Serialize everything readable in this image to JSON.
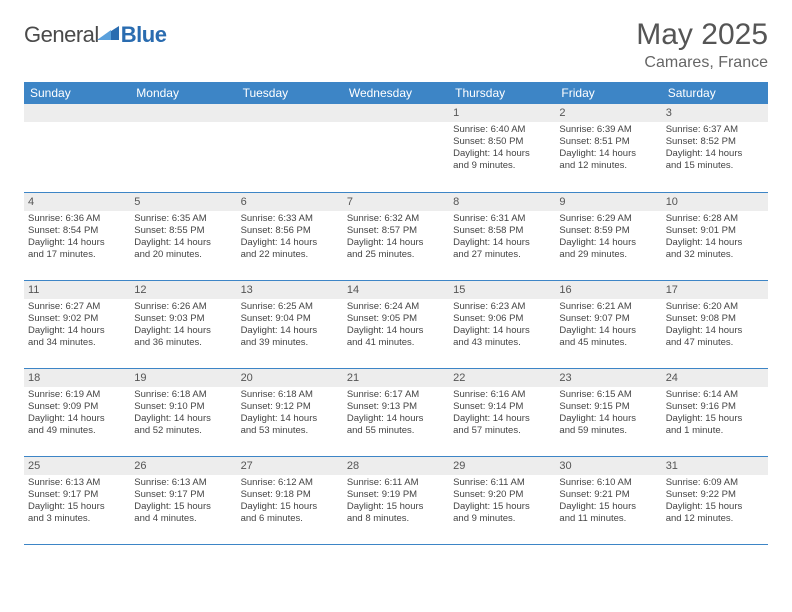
{
  "logo": {
    "part1": "General",
    "part2": "Blue"
  },
  "title": "May 2025",
  "location": "Camares, France",
  "colors": {
    "header_bg": "#3d85c6",
    "header_text": "#ffffff",
    "daynum_bg": "#ededed",
    "row_border": "#3d85c6",
    "title_color": "#555555",
    "body_text": "#444444",
    "logo_gray": "#4a4a4a",
    "logo_blue": "#2a6cb0"
  },
  "weekdays": [
    "Sunday",
    "Monday",
    "Tuesday",
    "Wednesday",
    "Thursday",
    "Friday",
    "Saturday"
  ],
  "weeks": [
    [
      null,
      null,
      null,
      null,
      {
        "n": "1",
        "sr": "Sunrise: 6:40 AM",
        "ss": "Sunset: 8:50 PM",
        "dl1": "Daylight: 14 hours",
        "dl2": "and 9 minutes."
      },
      {
        "n": "2",
        "sr": "Sunrise: 6:39 AM",
        "ss": "Sunset: 8:51 PM",
        "dl1": "Daylight: 14 hours",
        "dl2": "and 12 minutes."
      },
      {
        "n": "3",
        "sr": "Sunrise: 6:37 AM",
        "ss": "Sunset: 8:52 PM",
        "dl1": "Daylight: 14 hours",
        "dl2": "and 15 minutes."
      }
    ],
    [
      {
        "n": "4",
        "sr": "Sunrise: 6:36 AM",
        "ss": "Sunset: 8:54 PM",
        "dl1": "Daylight: 14 hours",
        "dl2": "and 17 minutes."
      },
      {
        "n": "5",
        "sr": "Sunrise: 6:35 AM",
        "ss": "Sunset: 8:55 PM",
        "dl1": "Daylight: 14 hours",
        "dl2": "and 20 minutes."
      },
      {
        "n": "6",
        "sr": "Sunrise: 6:33 AM",
        "ss": "Sunset: 8:56 PM",
        "dl1": "Daylight: 14 hours",
        "dl2": "and 22 minutes."
      },
      {
        "n": "7",
        "sr": "Sunrise: 6:32 AM",
        "ss": "Sunset: 8:57 PM",
        "dl1": "Daylight: 14 hours",
        "dl2": "and 25 minutes."
      },
      {
        "n": "8",
        "sr": "Sunrise: 6:31 AM",
        "ss": "Sunset: 8:58 PM",
        "dl1": "Daylight: 14 hours",
        "dl2": "and 27 minutes."
      },
      {
        "n": "9",
        "sr": "Sunrise: 6:29 AM",
        "ss": "Sunset: 8:59 PM",
        "dl1": "Daylight: 14 hours",
        "dl2": "and 29 minutes."
      },
      {
        "n": "10",
        "sr": "Sunrise: 6:28 AM",
        "ss": "Sunset: 9:01 PM",
        "dl1": "Daylight: 14 hours",
        "dl2": "and 32 minutes."
      }
    ],
    [
      {
        "n": "11",
        "sr": "Sunrise: 6:27 AM",
        "ss": "Sunset: 9:02 PM",
        "dl1": "Daylight: 14 hours",
        "dl2": "and 34 minutes."
      },
      {
        "n": "12",
        "sr": "Sunrise: 6:26 AM",
        "ss": "Sunset: 9:03 PM",
        "dl1": "Daylight: 14 hours",
        "dl2": "and 36 minutes."
      },
      {
        "n": "13",
        "sr": "Sunrise: 6:25 AM",
        "ss": "Sunset: 9:04 PM",
        "dl1": "Daylight: 14 hours",
        "dl2": "and 39 minutes."
      },
      {
        "n": "14",
        "sr": "Sunrise: 6:24 AM",
        "ss": "Sunset: 9:05 PM",
        "dl1": "Daylight: 14 hours",
        "dl2": "and 41 minutes."
      },
      {
        "n": "15",
        "sr": "Sunrise: 6:23 AM",
        "ss": "Sunset: 9:06 PM",
        "dl1": "Daylight: 14 hours",
        "dl2": "and 43 minutes."
      },
      {
        "n": "16",
        "sr": "Sunrise: 6:21 AM",
        "ss": "Sunset: 9:07 PM",
        "dl1": "Daylight: 14 hours",
        "dl2": "and 45 minutes."
      },
      {
        "n": "17",
        "sr": "Sunrise: 6:20 AM",
        "ss": "Sunset: 9:08 PM",
        "dl1": "Daylight: 14 hours",
        "dl2": "and 47 minutes."
      }
    ],
    [
      {
        "n": "18",
        "sr": "Sunrise: 6:19 AM",
        "ss": "Sunset: 9:09 PM",
        "dl1": "Daylight: 14 hours",
        "dl2": "and 49 minutes."
      },
      {
        "n": "19",
        "sr": "Sunrise: 6:18 AM",
        "ss": "Sunset: 9:10 PM",
        "dl1": "Daylight: 14 hours",
        "dl2": "and 52 minutes."
      },
      {
        "n": "20",
        "sr": "Sunrise: 6:18 AM",
        "ss": "Sunset: 9:12 PM",
        "dl1": "Daylight: 14 hours",
        "dl2": "and 53 minutes."
      },
      {
        "n": "21",
        "sr": "Sunrise: 6:17 AM",
        "ss": "Sunset: 9:13 PM",
        "dl1": "Daylight: 14 hours",
        "dl2": "and 55 minutes."
      },
      {
        "n": "22",
        "sr": "Sunrise: 6:16 AM",
        "ss": "Sunset: 9:14 PM",
        "dl1": "Daylight: 14 hours",
        "dl2": "and 57 minutes."
      },
      {
        "n": "23",
        "sr": "Sunrise: 6:15 AM",
        "ss": "Sunset: 9:15 PM",
        "dl1": "Daylight: 14 hours",
        "dl2": "and 59 minutes."
      },
      {
        "n": "24",
        "sr": "Sunrise: 6:14 AM",
        "ss": "Sunset: 9:16 PM",
        "dl1": "Daylight: 15 hours",
        "dl2": "and 1 minute."
      }
    ],
    [
      {
        "n": "25",
        "sr": "Sunrise: 6:13 AM",
        "ss": "Sunset: 9:17 PM",
        "dl1": "Daylight: 15 hours",
        "dl2": "and 3 minutes."
      },
      {
        "n": "26",
        "sr": "Sunrise: 6:13 AM",
        "ss": "Sunset: 9:17 PM",
        "dl1": "Daylight: 15 hours",
        "dl2": "and 4 minutes."
      },
      {
        "n": "27",
        "sr": "Sunrise: 6:12 AM",
        "ss": "Sunset: 9:18 PM",
        "dl1": "Daylight: 15 hours",
        "dl2": "and 6 minutes."
      },
      {
        "n": "28",
        "sr": "Sunrise: 6:11 AM",
        "ss": "Sunset: 9:19 PM",
        "dl1": "Daylight: 15 hours",
        "dl2": "and 8 minutes."
      },
      {
        "n": "29",
        "sr": "Sunrise: 6:11 AM",
        "ss": "Sunset: 9:20 PM",
        "dl1": "Daylight: 15 hours",
        "dl2": "and 9 minutes."
      },
      {
        "n": "30",
        "sr": "Sunrise: 6:10 AM",
        "ss": "Sunset: 9:21 PM",
        "dl1": "Daylight: 15 hours",
        "dl2": "and 11 minutes."
      },
      {
        "n": "31",
        "sr": "Sunrise: 6:09 AM",
        "ss": "Sunset: 9:22 PM",
        "dl1": "Daylight: 15 hours",
        "dl2": "and 12 minutes."
      }
    ]
  ]
}
